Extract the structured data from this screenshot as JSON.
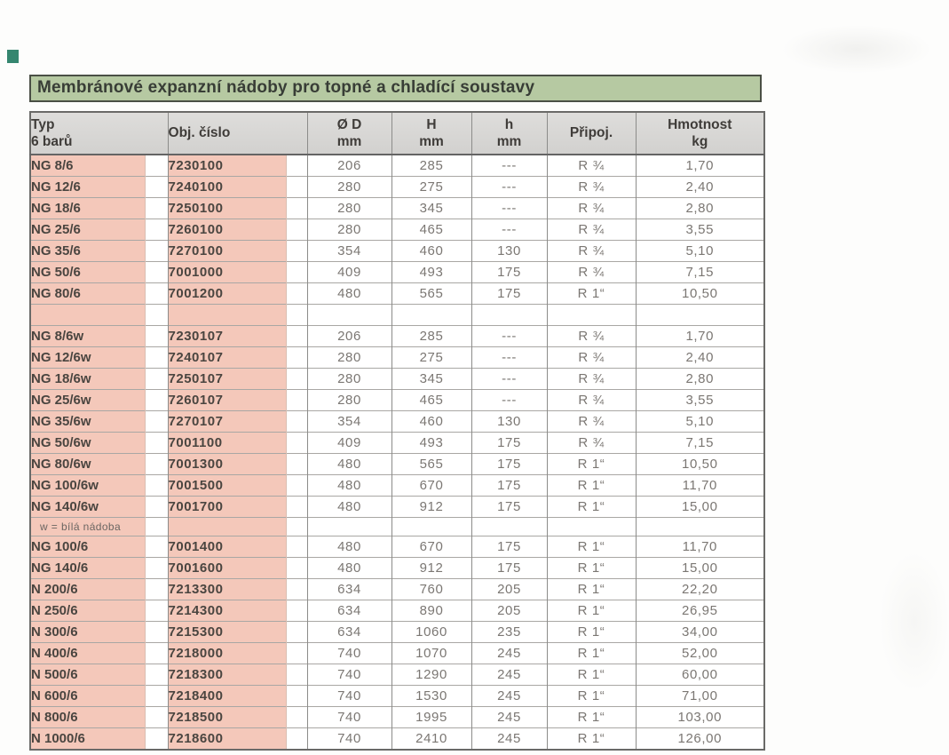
{
  "page": {
    "title": "Membránové expanzní nádoby pro topné a chladící soustavy"
  },
  "colors": {
    "title_bg": "#b6c9a2",
    "title_border": "#4a4f45",
    "band_pink": "#f4c8ba",
    "header_gray": "#d8d7d5",
    "corner_mark": "#35866f"
  },
  "table": {
    "headers": {
      "typ_line1": "Typ",
      "typ_line2": "6 barů",
      "obj": "Obj. číslo",
      "d_line1": "Ø D",
      "d_line2": "mm",
      "H_line1": "H",
      "H_line2": "mm",
      "h_line1": "h",
      "h_line2": "mm",
      "conn": "Připoj.",
      "kg_line1": "Hmotnost",
      "kg_line2": "kg"
    },
    "rows": [
      {
        "kind": "data",
        "typ": "NG 8/6",
        "obj": "7230100",
        "d": "206",
        "H": "285",
        "h": "---",
        "conn": "R ¾",
        "kg": "1,70"
      },
      {
        "kind": "data",
        "typ": "NG 12/6",
        "obj": "7240100",
        "d": "280",
        "H": "275",
        "h": "---",
        "conn": "R ¾",
        "kg": "2,40"
      },
      {
        "kind": "data",
        "typ": "NG 18/6",
        "obj": "7250100",
        "d": "280",
        "H": "345",
        "h": "---",
        "conn": "R ¾",
        "kg": "2,80"
      },
      {
        "kind": "data",
        "typ": "NG 25/6",
        "obj": "7260100",
        "d": "280",
        "H": "465",
        "h": "---",
        "conn": "R ¾",
        "kg": "3,55"
      },
      {
        "kind": "data",
        "typ": "NG 35/6",
        "obj": "7270100",
        "d": "354",
        "H": "460",
        "h": "130",
        "conn": "R ¾",
        "kg": "5,10"
      },
      {
        "kind": "data",
        "typ": "NG 50/6",
        "obj": "7001000",
        "d": "409",
        "H": "493",
        "h": "175",
        "conn": "R ¾",
        "kg": "7,15"
      },
      {
        "kind": "data",
        "typ": "NG 80/6",
        "obj": "7001200",
        "d": "480",
        "H": "565",
        "h": "175",
        "conn": "R 1“",
        "kg": "10,50"
      },
      {
        "kind": "sep",
        "typ": "",
        "obj": "",
        "d": "",
        "H": "",
        "h": "",
        "conn": "",
        "kg": ""
      },
      {
        "kind": "data",
        "typ": "NG 8/6w",
        "obj": "7230107",
        "d": "206",
        "H": "285",
        "h": "---",
        "conn": "R ¾",
        "kg": "1,70"
      },
      {
        "kind": "data",
        "typ": "NG 12/6w",
        "obj": "7240107",
        "d": "280",
        "H": "275",
        "h": "---",
        "conn": "R ¾",
        "kg": "2,40"
      },
      {
        "kind": "data",
        "typ": "NG 18/6w",
        "obj": "7250107",
        "d": "280",
        "H": "345",
        "h": "---",
        "conn": "R ¾",
        "kg": "2,80"
      },
      {
        "kind": "data",
        "typ": "NG 25/6w",
        "obj": "7260107",
        "d": "280",
        "H": "465",
        "h": "---",
        "conn": "R ¾",
        "kg": "3,55"
      },
      {
        "kind": "data",
        "typ": "NG 35/6w",
        "obj": "7270107",
        "d": "354",
        "H": "460",
        "h": "130",
        "conn": "R ¾",
        "kg": "5,10"
      },
      {
        "kind": "data",
        "typ": "NG 50/6w",
        "obj": "7001100",
        "d": "409",
        "H": "493",
        "h": "175",
        "conn": "R ¾",
        "kg": "7,15"
      },
      {
        "kind": "data",
        "typ": "NG 80/6w",
        "obj": "7001300",
        "d": "480",
        "H": "565",
        "h": "175",
        "conn": "R 1“",
        "kg": "10,50"
      },
      {
        "kind": "data",
        "typ": "NG 100/6w",
        "obj": "7001500",
        "d": "480",
        "H": "670",
        "h": "175",
        "conn": "R 1“",
        "kg": "11,70"
      },
      {
        "kind": "data",
        "typ": "NG 140/6w",
        "obj": "7001700",
        "d": "480",
        "H": "912",
        "h": "175",
        "conn": "R 1“",
        "kg": "15,00"
      },
      {
        "kind": "note",
        "typ": "w = bílá nádoba",
        "obj": "",
        "d": "",
        "H": "",
        "h": "",
        "conn": "",
        "kg": ""
      },
      {
        "kind": "data",
        "typ": "NG 100/6",
        "obj": "7001400",
        "d": "480",
        "H": "670",
        "h": "175",
        "conn": "R 1“",
        "kg": "11,70"
      },
      {
        "kind": "data",
        "typ": "NG 140/6",
        "obj": "7001600",
        "d": "480",
        "H": "912",
        "h": "175",
        "conn": "R 1“",
        "kg": "15,00"
      },
      {
        "kind": "data",
        "typ": "N 200/6",
        "obj": "7213300",
        "d": "634",
        "H": "760",
        "h": "205",
        "conn": "R 1“",
        "kg": "22,20"
      },
      {
        "kind": "data",
        "typ": "N 250/6",
        "obj": "7214300",
        "d": "634",
        "H": "890",
        "h": "205",
        "conn": "R 1“",
        "kg": "26,95"
      },
      {
        "kind": "data",
        "typ": "N 300/6",
        "obj": "7215300",
        "d": "634",
        "H": "1060",
        "h": "235",
        "conn": "R 1“",
        "kg": "34,00"
      },
      {
        "kind": "data",
        "typ": "N 400/6",
        "obj": "7218000",
        "d": "740",
        "H": "1070",
        "h": "245",
        "conn": "R 1“",
        "kg": "52,00"
      },
      {
        "kind": "data",
        "typ": "N 500/6",
        "obj": "7218300",
        "d": "740",
        "H": "1290",
        "h": "245",
        "conn": "R 1“",
        "kg": "60,00"
      },
      {
        "kind": "data",
        "typ": "N 600/6",
        "obj": "7218400",
        "d": "740",
        "H": "1530",
        "h": "245",
        "conn": "R 1“",
        "kg": "71,00"
      },
      {
        "kind": "data",
        "typ": "N 800/6",
        "obj": "7218500",
        "d": "740",
        "H": "1995",
        "h": "245",
        "conn": "R 1“",
        "kg": "103,00"
      },
      {
        "kind": "data",
        "typ": "N 1000/6",
        "obj": "7218600",
        "d": "740",
        "H": "2410",
        "h": "245",
        "conn": "R 1“",
        "kg": "126,00"
      }
    ]
  }
}
